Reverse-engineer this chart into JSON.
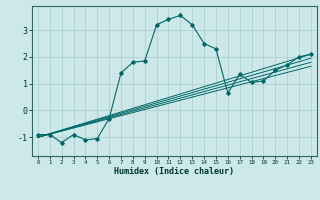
{
  "title": "",
  "xlabel": "Humidex (Indice chaleur)",
  "ylabel": "",
  "bg_color": "#cce8e8",
  "grid_color": "#aacccc",
  "line_color": "#006666",
  "xlim": [
    -0.5,
    23.5
  ],
  "ylim": [
    -1.7,
    3.9
  ],
  "xticks": [
    0,
    1,
    2,
    3,
    4,
    5,
    6,
    7,
    8,
    9,
    10,
    11,
    12,
    13,
    14,
    15,
    16,
    17,
    18,
    19,
    20,
    21,
    22,
    23
  ],
  "yticks": [
    -1,
    0,
    1,
    2,
    3
  ],
  "main_line_x": [
    0,
    1,
    2,
    3,
    4,
    5,
    6,
    7,
    8,
    9,
    10,
    11,
    12,
    13,
    14,
    15,
    16,
    17,
    18,
    19,
    20,
    21,
    22,
    23
  ],
  "main_line_y": [
    -0.9,
    -0.9,
    -1.2,
    -0.9,
    -1.1,
    -1.05,
    -0.3,
    1.4,
    1.8,
    1.85,
    3.2,
    3.4,
    3.55,
    3.2,
    2.5,
    2.3,
    0.65,
    1.35,
    1.05,
    1.1,
    1.5,
    1.7,
    2.0,
    2.1
  ],
  "straight_lines": [
    {
      "x": [
        0,
        23
      ],
      "y": [
        -1.0,
        2.1
      ]
    },
    {
      "x": [
        0,
        23
      ],
      "y": [
        -1.0,
        1.95
      ]
    },
    {
      "x": [
        0,
        23
      ],
      "y": [
        -1.0,
        1.8
      ]
    },
    {
      "x": [
        0,
        23
      ],
      "y": [
        -1.0,
        1.65
      ]
    }
  ],
  "figsize": [
    3.2,
    2.0
  ],
  "dpi": 100
}
